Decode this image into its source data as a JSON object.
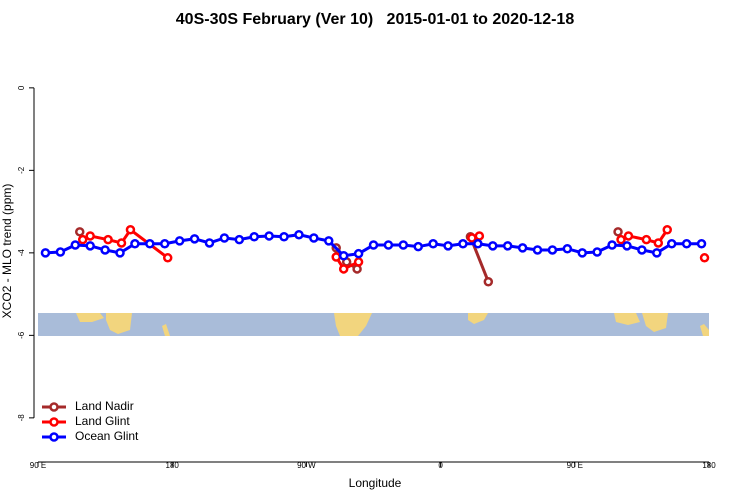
{
  "chart_data": {
    "type": "line",
    "title": "40S-30S February (Ver 10)   2015-01-01 to 2020-12-18",
    "x_label": "Longitude",
    "y_label": "XCO2 - MLO trend (ppm)",
    "xlim": [
      90,
      540
    ],
    "xticks": [
      {
        "value": 90,
        "label": "90 E"
      },
      {
        "value": 180,
        "label": "180"
      },
      {
        "value": 270,
        "label": "90 W"
      },
      {
        "value": 360,
        "label": "0"
      },
      {
        "value": 450,
        "label": "90 E"
      },
      {
        "value": 540,
        "label": "180"
      }
    ],
    "ylim": [
      -9.07,
      1.16
    ],
    "yticks": [
      0,
      -2,
      -4,
      -6,
      -8
    ],
    "legend": "bottomleft",
    "series": [
      {
        "name": "Land Nadir",
        "color": "#a52a2a",
        "x": [
          118,
          null,
          290,
          297,
          304,
          null,
          380,
          392,
          null,
          479
        ],
        "values": [
          -3.49,
          null,
          -3.88,
          -4.22,
          -4.39,
          null,
          -3.61,
          -4.7,
          null,
          -3.49
        ]
      },
      {
        "name": "Land Glint",
        "color": "#ff0000",
        "x": [
          120,
          125,
          137,
          146,
          152,
          177,
          null,
          290,
          295,
          305,
          null,
          381,
          386,
          null,
          481,
          486,
          498,
          506,
          512,
          null,
          537
        ],
        "values": [
          -3.68,
          -3.59,
          -3.68,
          -3.76,
          -3.44,
          -4.12,
          null,
          -4.1,
          -4.39,
          -4.22,
          null,
          -3.64,
          -3.59,
          null,
          -3.68,
          -3.59,
          -3.68,
          -3.76,
          -3.44,
          null,
          -4.12
        ]
      },
      {
        "name": "Ocean Glint",
        "color": "#0000ff",
        "x": [
          95,
          105,
          115,
          125,
          135,
          145,
          155,
          165,
          175,
          185,
          195,
          205,
          215,
          225,
          235,
          245,
          255,
          265,
          275,
          285,
          295,
          305,
          315,
          325,
          335,
          345,
          355,
          365,
          375,
          385,
          395,
          405,
          415,
          425,
          435,
          445,
          455,
          465,
          475,
          485,
          495,
          505,
          515,
          525,
          535
        ],
        "values": [
          -4.0,
          -3.98,
          -3.81,
          -3.83,
          -3.93,
          -4.0,
          -3.78,
          -3.78,
          -3.78,
          -3.71,
          -3.66,
          -3.76,
          -3.64,
          -3.68,
          -3.61,
          -3.59,
          -3.61,
          -3.56,
          -3.64,
          -3.71,
          -4.07,
          -4.02,
          -3.81,
          -3.81,
          -3.81,
          -3.85,
          -3.78,
          -3.83,
          -3.78,
          -3.78,
          -3.83,
          -3.83,
          -3.88,
          -3.93,
          -3.93,
          -3.9,
          -4.0,
          -3.98,
          -3.81,
          -3.83,
          -3.93,
          -4.0,
          -3.78,
          -3.78,
          -3.78
        ]
      }
    ]
  }
}
